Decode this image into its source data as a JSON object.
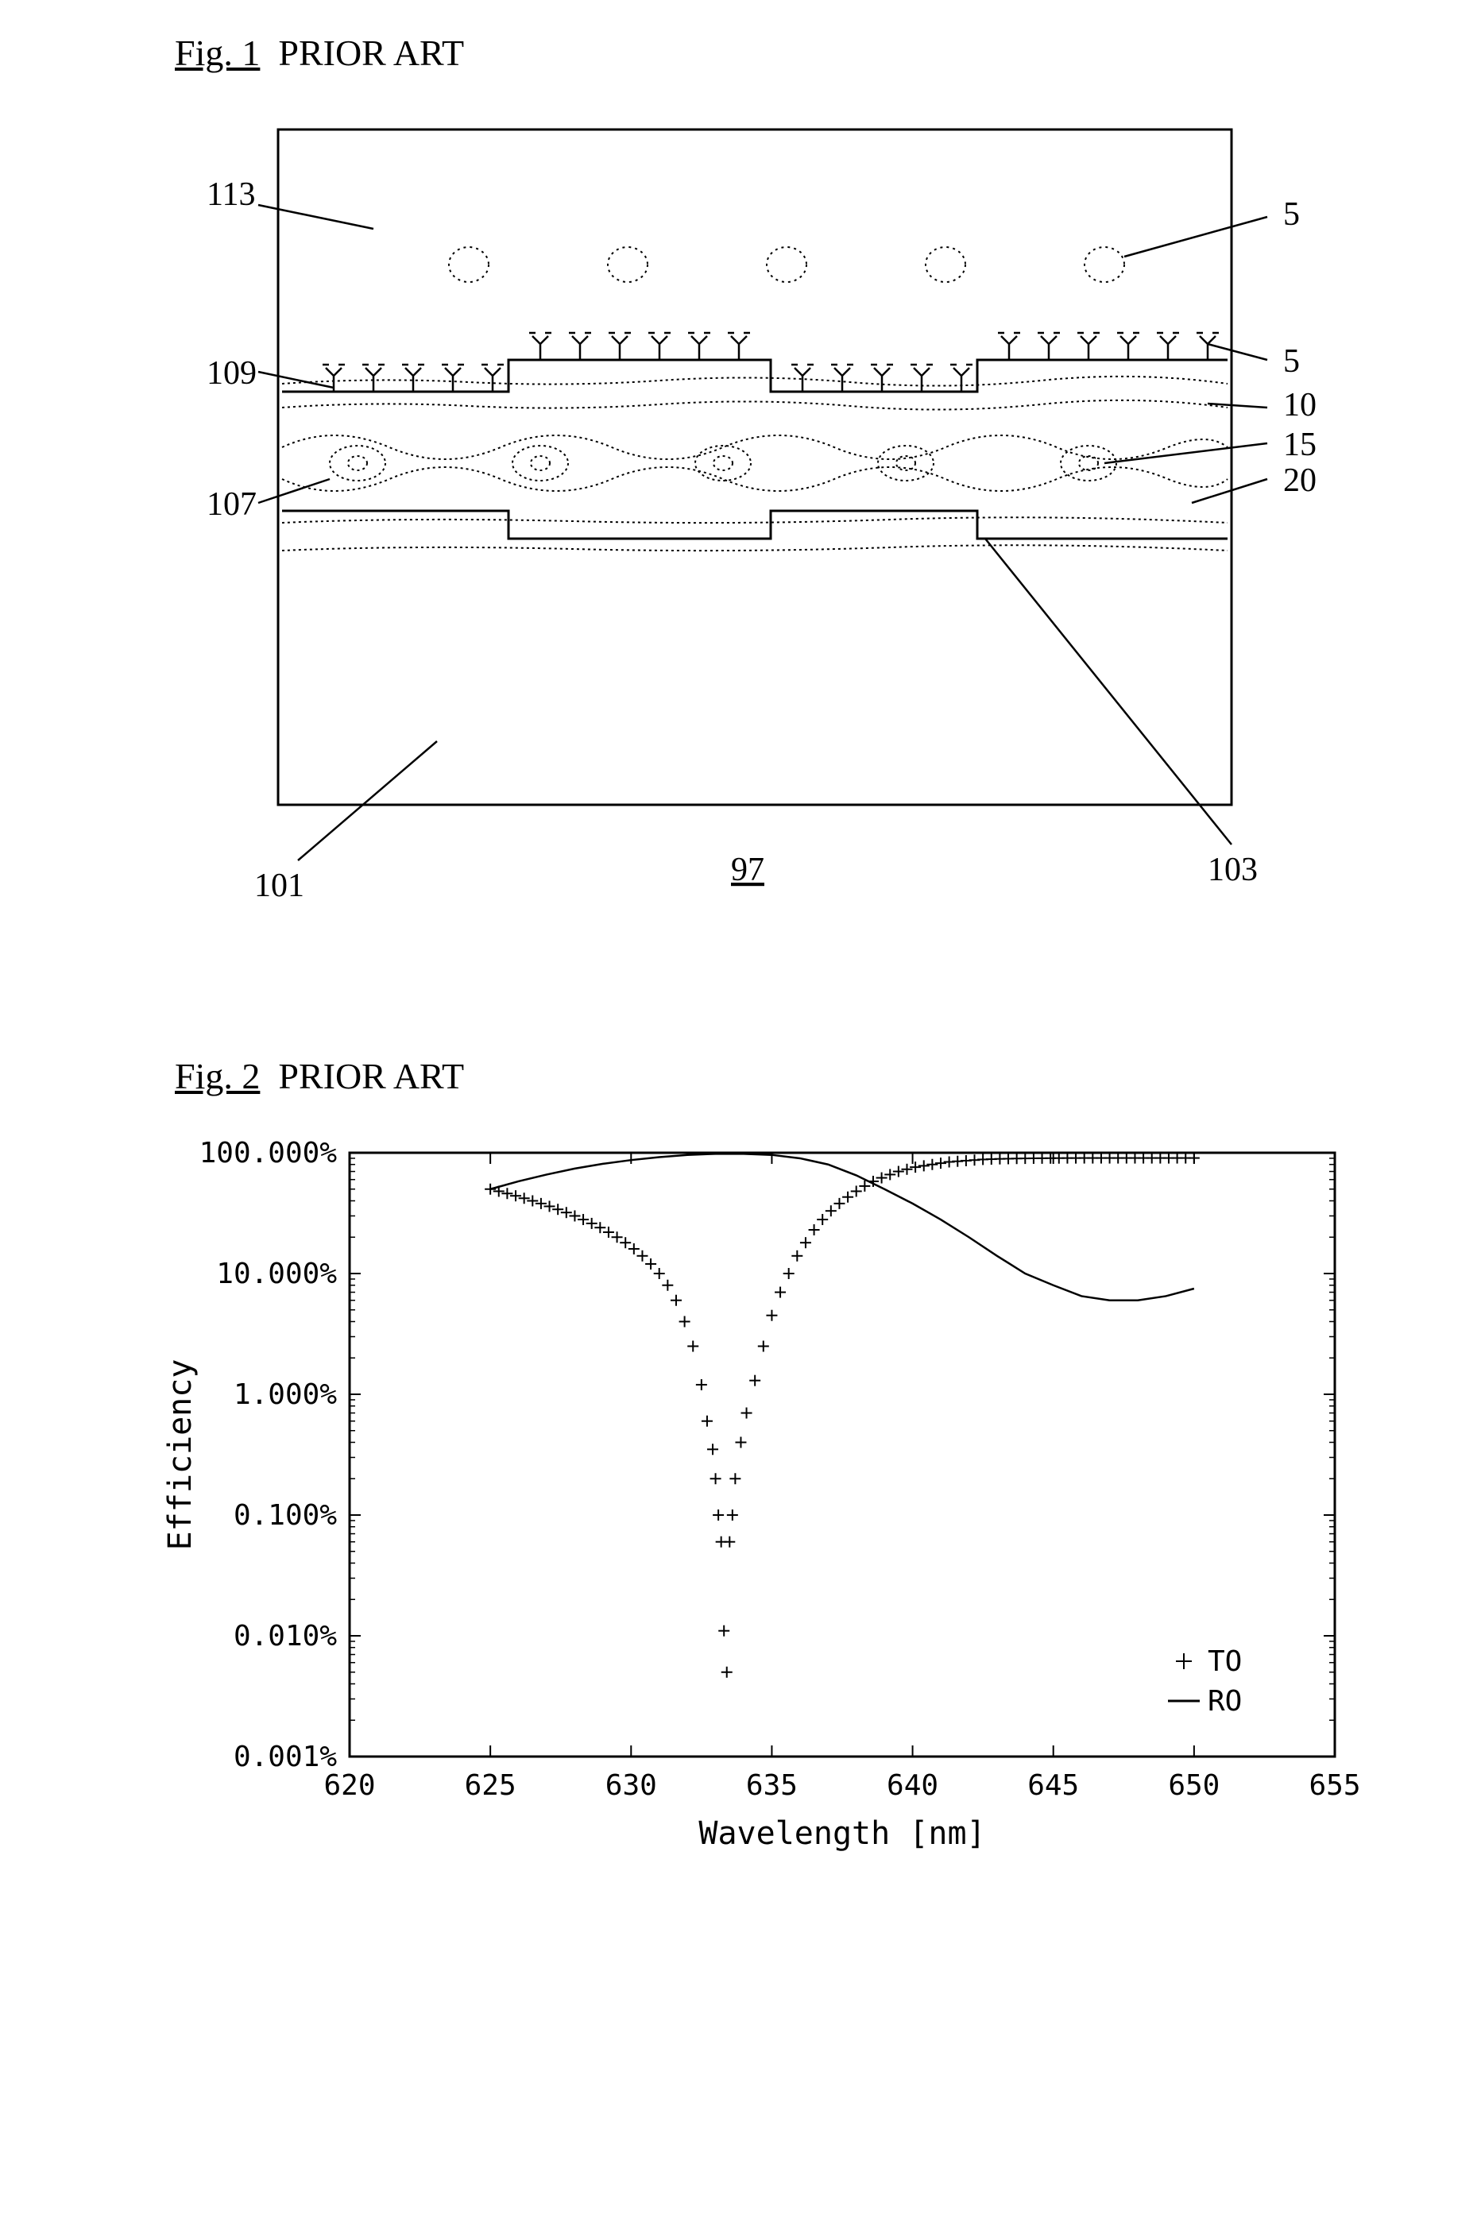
{
  "fig1": {
    "title_label": "Fig. 1",
    "subtitle": "PRIOR ART",
    "frame_color": "#000000",
    "dot_stroke": "#000000",
    "callouts_left": [
      {
        "label": "113"
      },
      {
        "label": "109"
      },
      {
        "label": "107"
      },
      {
        "label": "101"
      }
    ],
    "callouts_right": [
      {
        "label": "5"
      },
      {
        "label": "5"
      },
      {
        "label": "10"
      },
      {
        "label": "15"
      },
      {
        "label": "20"
      },
      {
        "label": "103"
      }
    ],
    "bottom_center_label": "97"
  },
  "fig2": {
    "title_label": "Fig. 2",
    "subtitle": "PRIOR ART",
    "type": "line+scatter",
    "xlabel": "Wavelength [nm]",
    "ylabel": "Efficiency",
    "xlim": [
      620,
      655
    ],
    "xtick_step": 5,
    "xticks": [
      620,
      625,
      630,
      635,
      640,
      645,
      650,
      655
    ],
    "yscale": "log",
    "ylim": [
      0.001,
      100
    ],
    "yticks": [
      0.001,
      0.01,
      0.1,
      1,
      10,
      100
    ],
    "ytick_labels": [
      "0.001%",
      "0.010%",
      "0.100%",
      "1.000%",
      "10.000%",
      "100.000%"
    ],
    "label_fontsize": 40,
    "tick_fontsize": 36,
    "axis_color": "#000000",
    "background_color": "#ffffff",
    "legend": {
      "items": [
        {
          "label": "TO",
          "marker": "+"
        },
        {
          "label": "RO",
          "marker": "line"
        }
      ],
      "position": "bottom-right"
    },
    "series": {
      "T0": {
        "marker": "+",
        "color": "#000000",
        "marker_size": 14,
        "data": [
          [
            625.0,
            50
          ],
          [
            625.3,
            48
          ],
          [
            625.6,
            46
          ],
          [
            625.9,
            44
          ],
          [
            626.2,
            42
          ],
          [
            626.5,
            40
          ],
          [
            626.8,
            38
          ],
          [
            627.1,
            36
          ],
          [
            627.4,
            34
          ],
          [
            627.7,
            32
          ],
          [
            628.0,
            30
          ],
          [
            628.3,
            28
          ],
          [
            628.6,
            26
          ],
          [
            628.9,
            24
          ],
          [
            629.2,
            22
          ],
          [
            629.5,
            20
          ],
          [
            629.8,
            18
          ],
          [
            630.1,
            16
          ],
          [
            630.4,
            14
          ],
          [
            630.7,
            12
          ],
          [
            631.0,
            10
          ],
          [
            631.3,
            8
          ],
          [
            631.6,
            6
          ],
          [
            631.9,
            4
          ],
          [
            632.2,
            2.5
          ],
          [
            632.5,
            1.2
          ],
          [
            632.7,
            0.6
          ],
          [
            632.9,
            0.35
          ],
          [
            633.0,
            0.2
          ],
          [
            633.1,
            0.1
          ],
          [
            633.2,
            0.06
          ],
          [
            633.3,
            0.011
          ],
          [
            633.4,
            0.005
          ],
          [
            633.5,
            0.06
          ],
          [
            633.6,
            0.1
          ],
          [
            633.7,
            0.2
          ],
          [
            633.9,
            0.4
          ],
          [
            634.1,
            0.7
          ],
          [
            634.4,
            1.3
          ],
          [
            634.7,
            2.5
          ],
          [
            635.0,
            4.5
          ],
          [
            635.3,
            7
          ],
          [
            635.6,
            10
          ],
          [
            635.9,
            14
          ],
          [
            636.2,
            18
          ],
          [
            636.5,
            23
          ],
          [
            636.8,
            28
          ],
          [
            637.1,
            33
          ],
          [
            637.4,
            38
          ],
          [
            637.7,
            43
          ],
          [
            638.0,
            48
          ],
          [
            638.3,
            53
          ],
          [
            638.6,
            58
          ],
          [
            638.9,
            62
          ],
          [
            639.2,
            66
          ],
          [
            639.5,
            70
          ],
          [
            639.8,
            73
          ],
          [
            640.1,
            76
          ],
          [
            640.4,
            78
          ],
          [
            640.7,
            80
          ],
          [
            641.0,
            82
          ],
          [
            641.3,
            84
          ],
          [
            641.6,
            85
          ],
          [
            641.9,
            86
          ],
          [
            642.2,
            87
          ],
          [
            642.5,
            88
          ],
          [
            642.8,
            88.5
          ],
          [
            643.1,
            89
          ],
          [
            643.4,
            89.3
          ],
          [
            643.7,
            89.6
          ],
          [
            644.0,
            89.8
          ],
          [
            644.3,
            90
          ],
          [
            644.6,
            90.1
          ],
          [
            644.9,
            90.2
          ],
          [
            645.2,
            90.3
          ],
          [
            645.5,
            90.4
          ],
          [
            645.8,
            90.4
          ],
          [
            646.1,
            90.5
          ],
          [
            646.4,
            90.5
          ],
          [
            646.7,
            90.5
          ],
          [
            647.0,
            90.5
          ],
          [
            647.3,
            90.5
          ],
          [
            647.6,
            90.5
          ],
          [
            647.9,
            90.5
          ],
          [
            648.2,
            90.5
          ],
          [
            648.5,
            90.5
          ],
          [
            648.8,
            90.5
          ],
          [
            649.1,
            90.5
          ],
          [
            649.4,
            90.5
          ],
          [
            649.7,
            90.5
          ],
          [
            650.0,
            90.5
          ]
        ]
      },
      "R0": {
        "color": "#000000",
        "line_width": 2.5,
        "data": [
          [
            625.0,
            50
          ],
          [
            626.0,
            58
          ],
          [
            627.0,
            66
          ],
          [
            628.0,
            74
          ],
          [
            629.0,
            81
          ],
          [
            630.0,
            87
          ],
          [
            631.0,
            92
          ],
          [
            632.0,
            96
          ],
          [
            633.0,
            98
          ],
          [
            634.0,
            98
          ],
          [
            635.0,
            96
          ],
          [
            636.0,
            90
          ],
          [
            637.0,
            80
          ],
          [
            638.0,
            65
          ],
          [
            639.0,
            50
          ],
          [
            640.0,
            38
          ],
          [
            641.0,
            28
          ],
          [
            642.0,
            20
          ],
          [
            643.0,
            14
          ],
          [
            644.0,
            10
          ],
          [
            645.0,
            8
          ],
          [
            646.0,
            6.5
          ],
          [
            647.0,
            6
          ],
          [
            648.0,
            6
          ],
          [
            649.0,
            6.5
          ],
          [
            650.0,
            7.5
          ]
        ]
      }
    }
  }
}
